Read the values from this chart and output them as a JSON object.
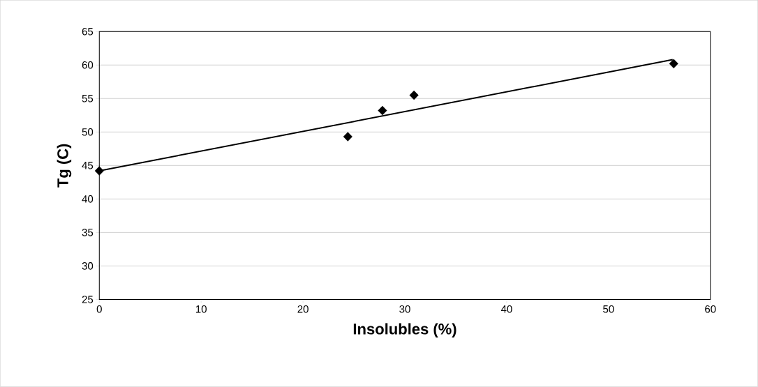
{
  "chart_data": {
    "type": "scatter",
    "xlabel": "Insolubles (%)",
    "ylabel": "Tg (C)",
    "series": [
      {
        "color": "#000000",
        "marker": "diamond",
        "x": [
          0,
          24.4,
          27.8,
          30.9,
          56.4
        ],
        "values": [
          44.2,
          49.3,
          53.2,
          55.5,
          60.2
        ]
      },
      {
        "type": "line",
        "color": "#000000",
        "x": [
          0,
          56.3
        ],
        "values": [
          44.2,
          60.8
        ]
      }
    ],
    "xlim": [
      0,
      60
    ],
    "ylim": [
      25,
      65
    ],
    "xticks": [
      0,
      10,
      20,
      30,
      40,
      50,
      60
    ],
    "yticks": [
      25,
      30,
      35,
      40,
      45,
      50,
      55,
      60,
      65
    ],
    "grid": "y"
  }
}
